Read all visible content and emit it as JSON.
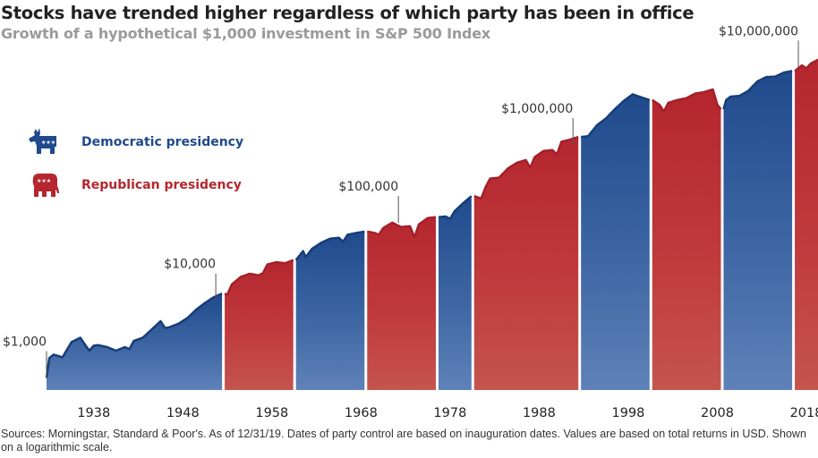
{
  "header": {
    "title": "Stocks have trended higher regardless of which party has been in office",
    "subtitle": "Growth of a hypothetical $1,000 investment in S&P 500 Index"
  },
  "legend": [
    {
      "label": "Democratic presidency",
      "icon": "donkey-icon",
      "color": "#1f4a8c"
    },
    {
      "label": "Republican presidency",
      "icon": "elephant-icon",
      "color": "#b5262f"
    }
  ],
  "footer": {
    "source": "Sources: Morningstar, Standard & Poor's. As of 12/31/19. Dates of party control are based on inauguration dates. Values are based on total returns in USD. Shown on a logarithmic scale."
  },
  "chart_data": {
    "type": "area",
    "title": "Stocks have trended higher regardless of which party has been in office",
    "subtitle": "Growth of a hypothetical $1,000 investment in S&P 500 Index",
    "xlabel": "",
    "ylabel": "",
    "scale": "log",
    "xlim": [
      1933,
      2019
    ],
    "ylim": [
      700,
      15000000
    ],
    "grid": false,
    "legend_position": "left",
    "x_ticks": [
      "1938",
      "1948",
      "1958",
      "1968",
      "1978",
      "1988",
      "1998",
      "2008",
      "2018"
    ],
    "x_tick_values": [
      1938,
      1948,
      1958,
      1968,
      1978,
      1988,
      1998,
      2008,
      2018
    ],
    "annotations": [
      {
        "label": "$1,000",
        "x": 1933.2,
        "value": 1000
      },
      {
        "label": "$10,000",
        "x": 1952.2,
        "value": 10000
      },
      {
        "label": "$100,000",
        "x": 1972.7,
        "value": 100000
      },
      {
        "label": "$1,000,000",
        "x": 1992.3,
        "value": 1000000
      },
      {
        "label": "$10,000,000",
        "x": 2017.6,
        "value": 10000000
      }
    ],
    "colors": {
      "D": "#1f4a8c",
      "R": "#b5262f"
    },
    "periods": [
      {
        "party": "D",
        "start": 1933.2,
        "end": 1953.05
      },
      {
        "party": "R",
        "start": 1953.05,
        "end": 1961.05
      },
      {
        "party": "D",
        "start": 1961.05,
        "end": 1969.05
      },
      {
        "party": "R",
        "start": 1969.05,
        "end": 1977.05
      },
      {
        "party": "D",
        "start": 1977.05,
        "end": 1981.05
      },
      {
        "party": "R",
        "start": 1981.05,
        "end": 1993.05
      },
      {
        "party": "D",
        "start": 1993.05,
        "end": 2001.05
      },
      {
        "party": "R",
        "start": 2001.05,
        "end": 2009.05
      },
      {
        "party": "D",
        "start": 2009.05,
        "end": 2017.05
      },
      {
        "party": "R",
        "start": 2017.05,
        "end": 2019.95
      }
    ],
    "series": [
      {
        "name": "Growth of $1,000",
        "x": [
          1933.2,
          1933.5,
          1934,
          1935,
          1936,
          1937,
          1937.5,
          1938,
          1938.5,
          1939,
          1940,
          1941,
          1942,
          1942.5,
          1943,
          1944,
          1945,
          1946,
          1946.5,
          1947,
          1948,
          1949,
          1950,
          1951,
          1952,
          1953.05,
          1953.5,
          1954,
          1955,
          1956,
          1956.5,
          1957,
          1957.5,
          1958,
          1959,
          1960,
          1961.05,
          1961.05,
          1962,
          1962.3,
          1963,
          1964,
          1965,
          1966,
          1966.5,
          1967,
          1968,
          1969.05,
          1969.05,
          1970,
          1970.5,
          1971,
          1972,
          1973,
          1974,
          1974.5,
          1975,
          1976,
          1977.05,
          1977.05,
          1978,
          1978.5,
          1979,
          1980,
          1981.05,
          1981.05,
          1982,
          1982.5,
          1983,
          1984,
          1985,
          1986,
          1987,
          1987.5,
          1988,
          1989,
          1990,
          1990.5,
          1991,
          1992,
          1993.05,
          1993.05,
          1994,
          1995,
          1996,
          1997,
          1998,
          1999,
          2000,
          2001.05,
          2001.05,
          2002,
          2002.5,
          2003,
          2004,
          2005,
          2006,
          2007,
          2008,
          2008.5,
          2009.05,
          2009.05,
          2009.5,
          2010,
          2011,
          2012,
          2013,
          2014,
          2015,
          2016,
          2017.05,
          2017.05,
          2018,
          2018.5,
          2019,
          2019.95
        ],
        "values": [
          1000,
          1800,
          2000,
          1850,
          2900,
          3300,
          2700,
          2250,
          2600,
          2650,
          2500,
          2250,
          2500,
          2350,
          3000,
          3300,
          4200,
          5400,
          4400,
          4500,
          5000,
          5900,
          7600,
          9300,
          11000,
          12200,
          11800,
          16000,
          20000,
          22000,
          21500,
          21000,
          22500,
          29000,
          31000,
          30000,
          33000,
          33000,
          43000,
          36000,
          46000,
          55000,
          62000,
          64000,
          57000,
          70000,
          74000,
          77000,
          77000,
          74000,
          70000,
          85000,
          100000,
          88000,
          90000,
          65000,
          95000,
          115000,
          118000,
          118000,
          120000,
          112000,
          140000,
          180000,
          220000,
          220000,
          205000,
          290000,
          370000,
          380000,
          500000,
          590000,
          640000,
          510000,
          700000,
          840000,
          860000,
          760000,
          1100000,
          1180000,
          1270000,
          1270000,
          1300000,
          1800000,
          2200000,
          2900000,
          3700000,
          4500000,
          4100000,
          3800000,
          3800000,
          3300000,
          2700000,
          3500000,
          3800000,
          4000000,
          4600000,
          4800000,
          5200000,
          3300000,
          2900000,
          2900000,
          3800000,
          4200000,
          4300000,
          5000000,
          6600000,
          7500000,
          7600000,
          8600000,
          9000000,
          9000000,
          10600000,
          9700000,
          11200000,
          12800000
        ]
      }
    ]
  }
}
